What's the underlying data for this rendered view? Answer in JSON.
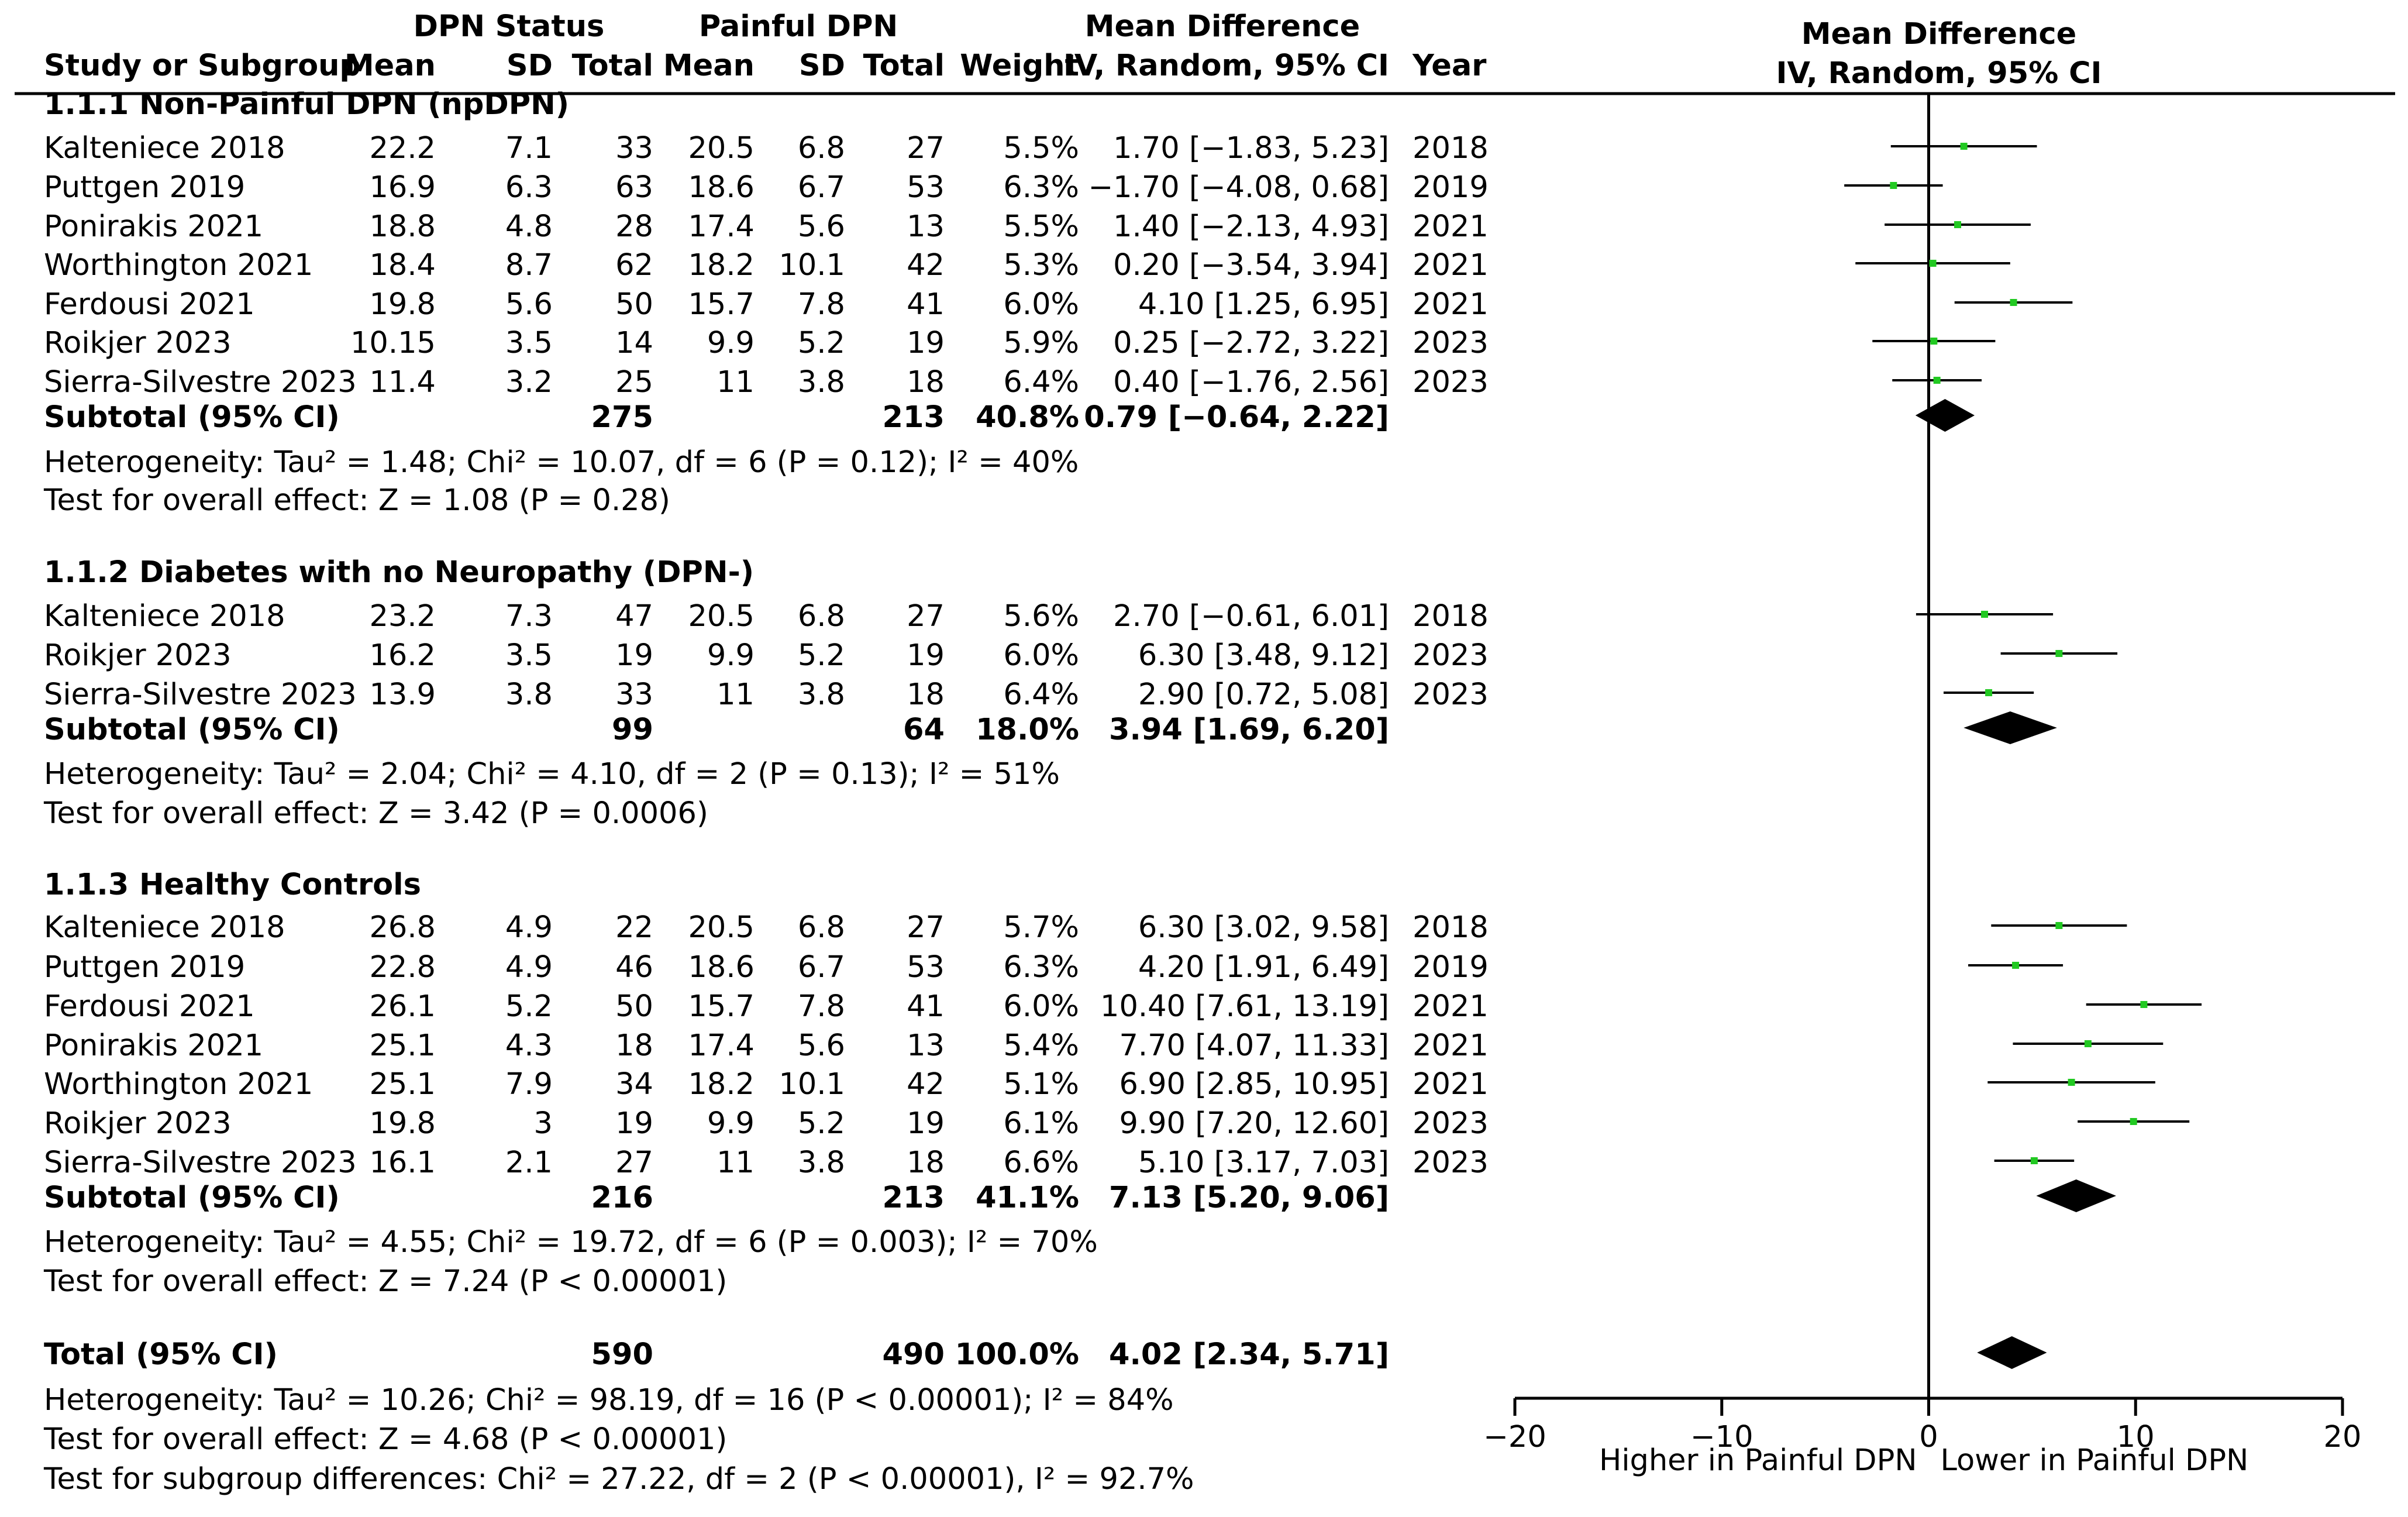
{
  "header": {
    "group1": "DPN Status",
    "group2": "Painful DPN",
    "md_title": "Mean Difference",
    "md_method": "IV, Random, 95% CI",
    "plot_title": "Mean Difference",
    "plot_method": "IV, Random, 95% CI",
    "col_study": "Study or Subgroup",
    "col_mean1": "Mean",
    "col_sd1": "SD",
    "col_total1": "Total",
    "col_mean2": "Mean",
    "col_sd2": "SD",
    "col_total2": "Total",
    "col_weight": "Weight",
    "col_year": "Year"
  },
  "groups": [
    {
      "title": "1.1.1 Non-Painful DPN (npDPN)",
      "studies": [
        {
          "name": "Kalteniece 2018",
          "m1": "22.2",
          "sd1": "7.1",
          "n1": "33",
          "m2": "20.5",
          "sd2": "6.8",
          "n2": "27",
          "w": "5.5%",
          "ci": "1.70 [−1.83, 5.23]",
          "year": "2018",
          "md": 1.7,
          "lo": -1.83,
          "hi": 5.23
        },
        {
          "name": "Puttgen 2019",
          "m1": "16.9",
          "sd1": "6.3",
          "n1": "63",
          "m2": "18.6",
          "sd2": "6.7",
          "n2": "53",
          "w": "6.3%",
          "ci": "−1.70 [−4.08, 0.68]",
          "year": "2019",
          "md": -1.7,
          "lo": -4.08,
          "hi": 0.68
        },
        {
          "name": "Ponirakis 2021",
          "m1": "18.8",
          "sd1": "4.8",
          "n1": "28",
          "m2": "17.4",
          "sd2": "5.6",
          "n2": "13",
          "w": "5.5%",
          "ci": "1.40 [−2.13, 4.93]",
          "year": "2021",
          "md": 1.4,
          "lo": -2.13,
          "hi": 4.93
        },
        {
          "name": "Worthington 2021",
          "m1": "18.4",
          "sd1": "8.7",
          "n1": "62",
          "m2": "18.2",
          "sd2": "10.1",
          "n2": "42",
          "w": "5.3%",
          "ci": "0.20 [−3.54, 3.94]",
          "year": "2021",
          "md": 0.2,
          "lo": -3.54,
          "hi": 3.94
        },
        {
          "name": "Ferdousi 2021",
          "m1": "19.8",
          "sd1": "5.6",
          "n1": "50",
          "m2": "15.7",
          "sd2": "7.8",
          "n2": "41",
          "w": "6.0%",
          "ci": "4.10 [1.25, 6.95]",
          "year": "2021",
          "md": 4.1,
          "lo": 1.25,
          "hi": 6.95
        },
        {
          "name": "Roikjer 2023",
          "m1": "10.15",
          "sd1": "3.5",
          "n1": "14",
          "m2": "9.9",
          "sd2": "5.2",
          "n2": "19",
          "w": "5.9%",
          "ci": "0.25 [−2.72, 3.22]",
          "year": "2023",
          "md": 0.25,
          "lo": -2.72,
          "hi": 3.22
        },
        {
          "name": "Sierra-Silvestre 2023",
          "m1": "11.4",
          "sd1": "3.2",
          "n1": "25",
          "m2": "11",
          "sd2": "3.8",
          "n2": "18",
          "w": "6.4%",
          "ci": "0.40 [−1.76, 2.56]",
          "year": "2023",
          "md": 0.4,
          "lo": -1.76,
          "hi": 2.56
        }
      ],
      "subtotal": {
        "label": "Subtotal (95% CI)",
        "n1": "275",
        "n2": "213",
        "w": "40.8%",
        "ci": "0.79 [−0.64, 2.22]",
        "md": 0.79,
        "lo": -0.64,
        "hi": 2.22
      },
      "heterogeneity": "Heterogeneity: Tau² = 1.48; Chi² = 10.07, df = 6 (P = 0.12); I² = 40%",
      "overall": "Test for overall effect: Z = 1.08 (P = 0.28)"
    },
    {
      "title": "1.1.2 Diabetes with no Neuropathy (DPN-)",
      "studies": [
        {
          "name": "Kalteniece 2018",
          "m1": "23.2",
          "sd1": "7.3",
          "n1": "47",
          "m2": "20.5",
          "sd2": "6.8",
          "n2": "27",
          "w": "5.6%",
          "ci": "2.70 [−0.61, 6.01]",
          "year": "2018",
          "md": 2.7,
          "lo": -0.61,
          "hi": 6.01
        },
        {
          "name": "Roikjer 2023",
          "m1": "16.2",
          "sd1": "3.5",
          "n1": "19",
          "m2": "9.9",
          "sd2": "5.2",
          "n2": "19",
          "w": "6.0%",
          "ci": "6.30 [3.48, 9.12]",
          "year": "2023",
          "md": 6.3,
          "lo": 3.48,
          "hi": 9.12
        },
        {
          "name": "Sierra-Silvestre 2023",
          "m1": "13.9",
          "sd1": "3.8",
          "n1": "33",
          "m2": "11",
          "sd2": "3.8",
          "n2": "18",
          "w": "6.4%",
          "ci": "2.90 [0.72, 5.08]",
          "year": "2023",
          "md": 2.9,
          "lo": 0.72,
          "hi": 5.08
        }
      ],
      "subtotal": {
        "label": "Subtotal (95% CI)",
        "n1": "99",
        "n2": "64",
        "w": "18.0%",
        "ci": "3.94 [1.69, 6.20]",
        "md": 3.94,
        "lo": 1.69,
        "hi": 6.2
      },
      "heterogeneity": "Heterogeneity: Tau² = 2.04; Chi² = 4.10, df = 2 (P = 0.13); I² = 51%",
      "overall": "Test for overall effect: Z = 3.42 (P = 0.0006)"
    },
    {
      "title": "1.1.3 Healthy Controls",
      "studies": [
        {
          "name": "Kalteniece 2018",
          "m1": "26.8",
          "sd1": "4.9",
          "n1": "22",
          "m2": "20.5",
          "sd2": "6.8",
          "n2": "27",
          "w": "5.7%",
          "ci": "6.30 [3.02, 9.58]",
          "year": "2018",
          "md": 6.3,
          "lo": 3.02,
          "hi": 9.58
        },
        {
          "name": "Puttgen 2019",
          "m1": "22.8",
          "sd1": "4.9",
          "n1": "46",
          "m2": "18.6",
          "sd2": "6.7",
          "n2": "53",
          "w": "6.3%",
          "ci": "4.20 [1.91, 6.49]",
          "year": "2019",
          "md": 4.2,
          "lo": 1.91,
          "hi": 6.49
        },
        {
          "name": "Ferdousi 2021",
          "m1": "26.1",
          "sd1": "5.2",
          "n1": "50",
          "m2": "15.7",
          "sd2": "7.8",
          "n2": "41",
          "w": "6.0%",
          "ci": "10.40 [7.61, 13.19]",
          "year": "2021",
          "md": 10.4,
          "lo": 7.61,
          "hi": 13.19
        },
        {
          "name": "Ponirakis 2021",
          "m1": "25.1",
          "sd1": "4.3",
          "n1": "18",
          "m2": "17.4",
          "sd2": "5.6",
          "n2": "13",
          "w": "5.4%",
          "ci": "7.70 [4.07, 11.33]",
          "year": "2021",
          "md": 7.7,
          "lo": 4.07,
          "hi": 11.33
        },
        {
          "name": "Worthington 2021",
          "m1": "25.1",
          "sd1": "7.9",
          "n1": "34",
          "m2": "18.2",
          "sd2": "10.1",
          "n2": "42",
          "w": "5.1%",
          "ci": "6.90 [2.85, 10.95]",
          "year": "2021",
          "md": 6.9,
          "lo": 2.85,
          "hi": 10.95
        },
        {
          "name": "Roikjer 2023",
          "m1": "19.8",
          "sd1": "3",
          "n1": "19",
          "m2": "9.9",
          "sd2": "5.2",
          "n2": "19",
          "w": "6.1%",
          "ci": "9.90 [7.20, 12.60]",
          "year": "2023",
          "md": 9.9,
          "lo": 7.2,
          "hi": 12.6
        },
        {
          "name": "Sierra-Silvestre 2023",
          "m1": "16.1",
          "sd1": "2.1",
          "n1": "27",
          "m2": "11",
          "sd2": "3.8",
          "n2": "18",
          "w": "6.6%",
          "ci": "5.10 [3.17, 7.03]",
          "year": "2023",
          "md": 5.1,
          "lo": 3.17,
          "hi": 7.03
        }
      ],
      "subtotal": {
        "label": "Subtotal (95% CI)",
        "n1": "216",
        "n2": "213",
        "w": "41.1%",
        "ci": "7.13 [5.20, 9.06]",
        "md": 7.13,
        "lo": 5.2,
        "hi": 9.06
      },
      "heterogeneity": "Heterogeneity: Tau² = 4.55; Chi² = 19.72, df = 6 (P = 0.003); I² = 70%",
      "overall": "Test for overall effect: Z = 7.24 (P < 0.00001)"
    }
  ],
  "total": {
    "label": "Total (95% CI)",
    "n1": "590",
    "n2": "490",
    "w": "100.0%",
    "ci": "4.02 [2.34, 5.71]",
    "md": 4.02,
    "lo": 2.34,
    "hi": 5.71
  },
  "footer": {
    "heterogeneity": "Heterogeneity: Tau² = 10.26; Chi² = 98.19, df = 16 (P < 0.00001); I² = 84%",
    "overall": "Test for overall effect: Z = 4.68 (P < 0.00001)",
    "subgroup": "Test for subgroup differences: Chi² = 27.22, df = 2 (P < 0.00001), I² = 92.7%"
  },
  "chart_data": {
    "type": "forest",
    "xlim": [
      -20,
      20
    ],
    "ticks": [
      -20,
      -10,
      0,
      10,
      20
    ],
    "tick_labels": [
      "−20",
      "−10",
      "0",
      "10",
      "20"
    ],
    "xlabel_left": "Higher in Painful DPN",
    "xlabel_right": "Lower in Painful DPN",
    "colors": {
      "point": "#22c922",
      "line": "#000000",
      "diamond": "#000000"
    }
  }
}
